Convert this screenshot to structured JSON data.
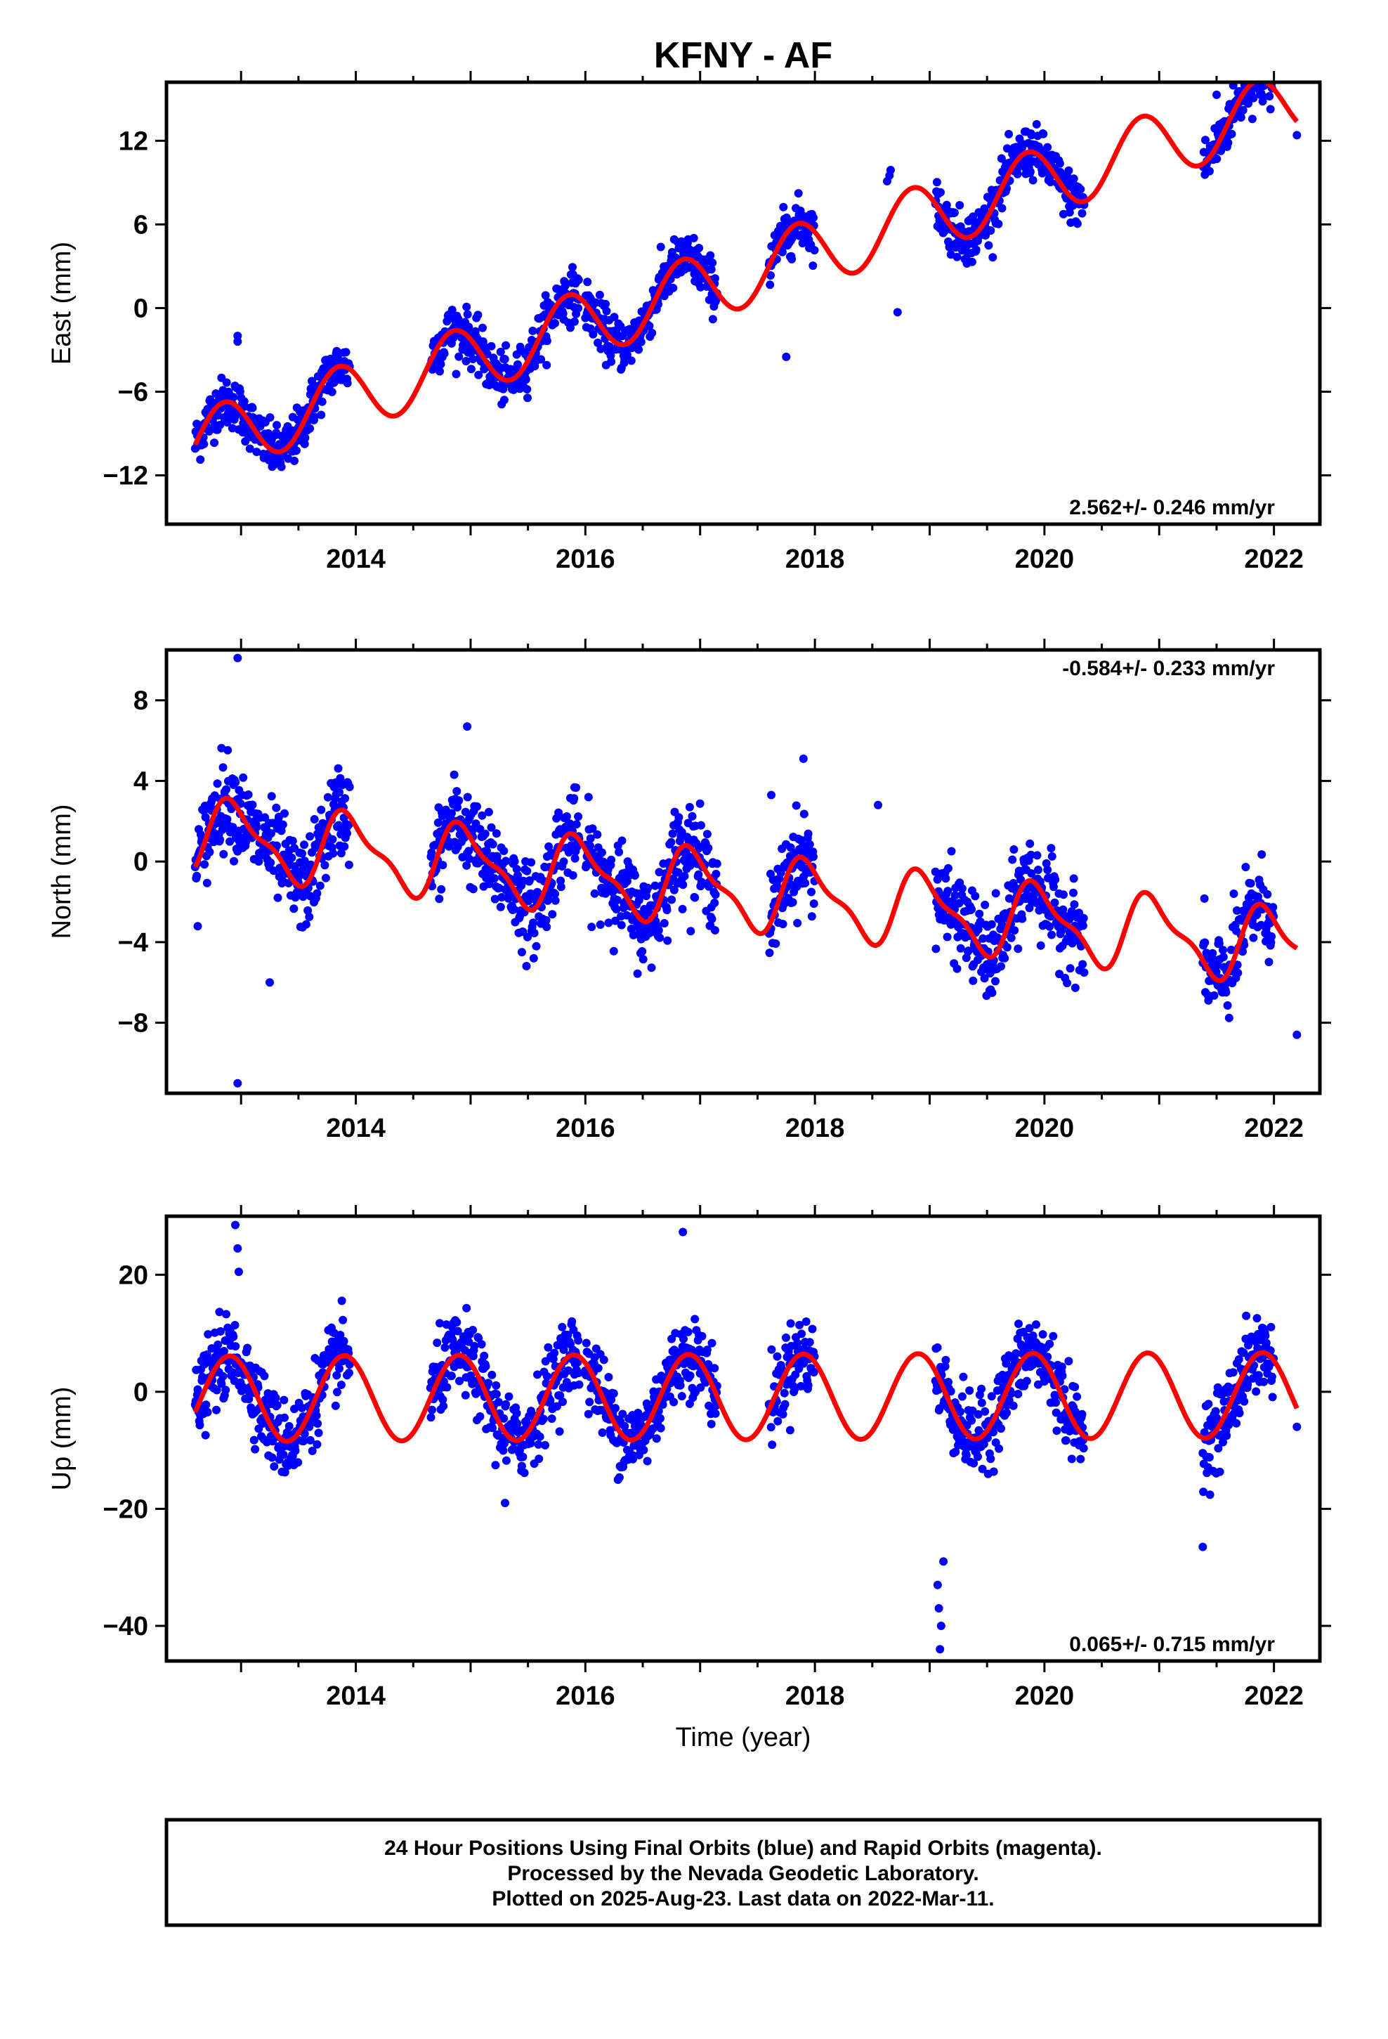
{
  "chart_data": {
    "type": "scatter",
    "title": "KFNY - AF",
    "xlabel": "Time (year)",
    "x_ticks": [
      "2014",
      "2016",
      "2018",
      "2020",
      "2022"
    ],
    "xlim": [
      2012.35,
      2022.4
    ],
    "series_colors": {
      "observations": "#0000ff",
      "model": "#ff0000"
    },
    "panels": [
      {
        "ylabel": "East (mm)",
        "ylim": [
          -15.5,
          16.2
        ],
        "y_ticks": [
          {
            "v": 12,
            "t": "12"
          },
          {
            "v": 6,
            "t": "6"
          },
          {
            "v": 0,
            "t": "0"
          },
          {
            "v": -6,
            "t": "−6"
          },
          {
            "v": -12,
            "t": "−12"
          }
        ],
        "rate": "2.562+/- 0.246 mm/yr",
        "rate_pos": "bottom-right",
        "model": {
          "trend": 2.562,
          "offset": -9.8,
          "x0": 2012.6,
          "annual_amp": 2.4,
          "annual_phase": 0.0,
          "semi_amp": 0.0
        },
        "noise": 0.9,
        "outliers": [
          [
            2012.97,
            -2.0
          ],
          [
            2012.97,
            -2.4
          ],
          [
            2017.75,
            -3.5
          ],
          [
            2018.72,
            -0.3
          ],
          [
            2018.65,
            9.5
          ],
          [
            2018.66,
            9.9
          ],
          [
            2018.63,
            9.1
          ],
          [
            2021.5,
            15.3
          ],
          [
            2022.2,
            12.4
          ]
        ]
      },
      {
        "ylabel": "North (mm)",
        "ylim": [
          -11.5,
          10.5
        ],
        "y_ticks": [
          {
            "v": 8,
            "t": "8"
          },
          {
            "v": 4,
            "t": "4"
          },
          {
            "v": 0,
            "t": "0"
          },
          {
            "v": -4,
            "t": "−4"
          },
          {
            "v": -8,
            "t": "−8"
          }
        ],
        "rate": "-0.584+/- 0.233 mm/yr",
        "rate_pos": "top-right",
        "model": {
          "trend": -0.584,
          "offset": 1.3,
          "x0": 2012.6,
          "annual_amp": 1.7,
          "annual_phase": 0.1,
          "semi_amp": 0.6
        },
        "noise": 1.1,
        "outliers": [
          [
            2012.97,
            10.1
          ],
          [
            2012.97,
            -11.0
          ],
          [
            2013.25,
            -6.0
          ],
          [
            2014.97,
            6.7
          ],
          [
            2017.62,
            3.3
          ],
          [
            2017.9,
            5.1
          ],
          [
            2018.55,
            2.8
          ],
          [
            2022.2,
            -8.6
          ]
        ]
      },
      {
        "ylabel": "Up (mm)",
        "ylim": [
          -46,
          30
        ],
        "y_ticks": [
          {
            "v": 20,
            "t": "20"
          },
          {
            "v": 0,
            "t": "0"
          },
          {
            "v": -20,
            "t": "−20"
          },
          {
            "v": -40,
            "t": "−40"
          }
        ],
        "rate": "0.065+/- 0.715 mm/yr",
        "rate_pos": "bottom-right",
        "model": {
          "trend": 0.065,
          "offset": -1.2,
          "x0": 2012.6,
          "annual_amp": 7.3,
          "annual_phase": 0.05,
          "semi_amp": 0.0
        },
        "noise": 3.3,
        "outliers": [
          [
            2012.95,
            28.5
          ],
          [
            2012.97,
            24.5
          ],
          [
            2012.98,
            20.5
          ],
          [
            2016.85,
            27.3
          ],
          [
            2019.07,
            -33
          ],
          [
            2019.08,
            -37
          ],
          [
            2019.1,
            -40
          ],
          [
            2019.09,
            -44
          ],
          [
            2019.12,
            -29
          ],
          [
            2021.38,
            -26.5
          ],
          [
            2015.3,
            -19
          ],
          [
            2022.2,
            -6.0
          ]
        ]
      }
    ],
    "data_segments": [
      [
        2012.6,
        2013.95
      ],
      [
        2014.65,
        2015.95
      ],
      [
        2016.0,
        2017.15
      ],
      [
        2017.6,
        2018.0
      ],
      [
        2019.05,
        2020.35
      ],
      [
        2021.38,
        2022.0
      ]
    ]
  },
  "footer": {
    "line1": "24 Hour Positions Using Final Orbits (blue) and Rapid Orbits (magenta).",
    "line2": "Processed by the Nevada Geodetic Laboratory.",
    "line3": "Plotted on 2025-Aug-23. Last data on 2022-Mar-11."
  }
}
